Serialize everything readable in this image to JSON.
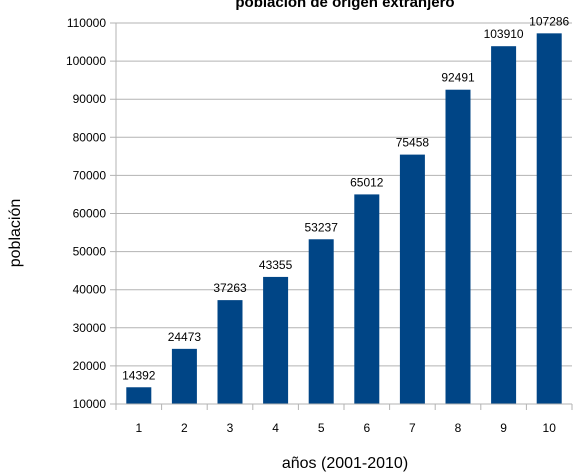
{
  "chart_data": {
    "type": "bar",
    "title": "población de origen extranjero",
    "xlabel": "años (2001-2010)",
    "ylabel": "población",
    "categories": [
      "1",
      "2",
      "3",
      "4",
      "5",
      "6",
      "7",
      "8",
      "9",
      "10"
    ],
    "values": [
      14392,
      24473,
      37263,
      43355,
      53237,
      65012,
      75458,
      92491,
      103910,
      107286
    ],
    "data_labels": [
      "14392",
      "24473",
      "37263",
      "43355",
      "53237",
      "65012",
      "75458",
      "92491",
      "103910",
      "107286"
    ],
    "ylim": [
      10000,
      110000
    ],
    "yticks": [
      10000,
      20000,
      30000,
      40000,
      50000,
      60000,
      70000,
      80000,
      90000,
      100000,
      110000
    ],
    "grid": true,
    "legend": "none",
    "bar_color": "#004586",
    "grid_color": "#b3b3b3"
  }
}
